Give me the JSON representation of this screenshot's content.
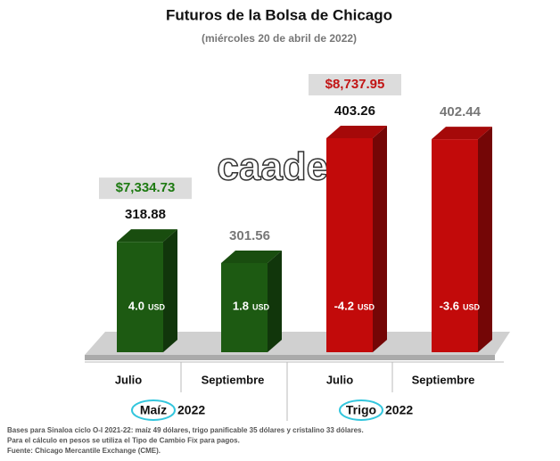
{
  "chart_data": {
    "type": "bar",
    "title": "Futuros de la Bolsa de Chicago",
    "subtitle": "(miércoles 20 de abril de 2022)",
    "categories": [
      "Julio",
      "Septiembre",
      "Julio",
      "Septiembre"
    ],
    "values": [
      318.88,
      301.56,
      403.26,
      402.44
    ],
    "value_label_colors": [
      "#111111",
      "#777777",
      "#111111",
      "#777777"
    ],
    "colors": [
      "#1d5a12",
      "#1d5a12",
      "#c20a0a",
      "#c20a0a"
    ],
    "changes": [
      4.0,
      1.8,
      -4.2,
      -3.6
    ],
    "change_labels": [
      "4.0",
      "1.8",
      "-4.2",
      "-3.6"
    ],
    "change_unit": "USD",
    "peso_prices": [
      7334.73,
      null,
      8737.95,
      null
    ],
    "peso_price_labels": [
      "$7,334.73",
      null,
      "$8,737.95",
      null
    ],
    "peso_price_colors": [
      "#1e7a12",
      null,
      "#c21515",
      null
    ],
    "groups": [
      {
        "name": "Maíz",
        "year": "2022"
      },
      {
        "name": "Trigo",
        "year": "2022"
      }
    ],
    "watermark": "caades",
    "notes": [
      "Bases para Sinaloa ciclo O-I 2021-22: maíz 49 dólares, trigo panificable 35 dólares y cristalino 33 dólares.",
      "Para el cálculo en pesos se utiliza el Tipo de Cambio Fix para pagos.",
      "Fuente: Chicago Mercantile Exchange (CME)."
    ]
  }
}
